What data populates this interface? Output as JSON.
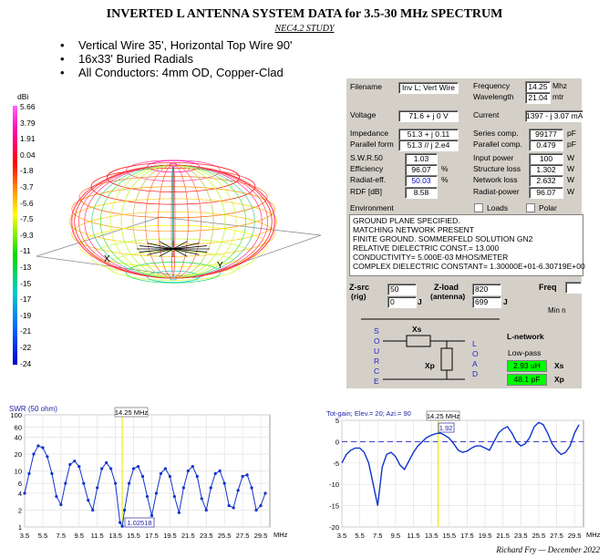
{
  "header": {
    "title": "INVERTED L ANTENNA SYSTEM DATA for 3.5-30 MHz SPECTRUM",
    "subtitle": "NEC4.2 STUDY",
    "bullets": [
      "Vertical Wire 35', Horizontal Top Wire 90'",
      "16x33' Buried Radials",
      "All Conductors: 4mm OD, Copper-Clad"
    ]
  },
  "pattern": {
    "scale_unit": "dBi",
    "scale_ticks": [
      "5.66",
      "3.79",
      "1.91",
      "0.04",
      "-1.8",
      "-3.7",
      "-5.6",
      "-7.5",
      "-9.3",
      "-11",
      "-13",
      "-15",
      "-17",
      "-19",
      "-21",
      "-22",
      "-24"
    ],
    "axis_x": "X",
    "axis_y": "Y"
  },
  "panel": {
    "filename_label": "Filename",
    "filename_value": "Inv L; Vert Wire",
    "frequency_label": "Frequency",
    "frequency_value": "14.25",
    "frequency_unit": "Mhz",
    "wavelength_label": "Wavelength",
    "wavelength_value": "21.04",
    "wavelength_unit": "mtr",
    "voltage_label": "Voltage",
    "voltage_value": "71.6 + j 0 V",
    "current_label": "Current",
    "current_value": "1397 - j 3.07 mA",
    "impedance_label": "Impedance",
    "impedance_value": "51.3 + j 0.11",
    "parallel_form_label": "Parallel form",
    "parallel_form_value": "51.3 // j 2.e4",
    "series_comp_label": "Series comp.",
    "series_comp_value": "99177",
    "series_comp_unit": "pF",
    "parallel_comp_label": "Parallel comp.",
    "parallel_comp_value": "0.479",
    "parallel_comp_unit": "pF",
    "swr_label": "S.W.R.50",
    "swr_value": "1.03",
    "input_power_label": "Input power",
    "input_power_value": "100",
    "input_power_unit": "W",
    "efficiency_label": "Efficiency",
    "efficiency_value": "96.07",
    "efficiency_unit": "%",
    "structure_loss_label": "Structure loss",
    "structure_loss_value": "1.302",
    "structure_loss_unit": "W",
    "radiat_eff_label": "Radiat-eff.",
    "radiat_eff_value": "50.03",
    "radiat_eff_unit": "%",
    "network_loss_label": "Network loss",
    "network_loss_value": "2.632",
    "network_loss_unit": "W",
    "rdf_label": "RDF [dB]",
    "rdf_value": "8.58",
    "radiat_power_label": "Radiat-power",
    "radiat_power_value": "96.07",
    "radiat_power_unit": "W",
    "environment_label": "Environment",
    "loads_label": "Loads",
    "polar_label": "Polar",
    "environment_lines": [
      "GROUND PLANE SPECIFIED.",
      "MATCHING NETWORK PRESENT",
      "FINITE GROUND.  SOMMERFELD SOLUTION GN2",
      "RELATIVE DIELECTRIC CONST.= 13.000",
      "CONDUCTIVITY= 5.000E-03 MHOS/METER",
      "COMPLEX DIELECTRIC CONSTANT= 1.30000E+01-6.30719E+00"
    ]
  },
  "network": {
    "zsrc_label": "Z-src",
    "zsrc_sub": "(rig)",
    "zsrc_r": "50",
    "zsrc_x": "0",
    "zload_label": "Z-load",
    "zload_sub": "(antenna)",
    "zload_r": "820",
    "zload_x": "699",
    "j_label": "J",
    "freq_label": "Freq",
    "min_label": "Min n",
    "source_label": "SOURCE",
    "load_label": "LOAD",
    "xs_label": "Xs",
    "xp_label": "Xp",
    "lnetwork_label": "L-network",
    "lowpass_label": "Low-pass",
    "xs_value": "2.93 uH",
    "xp_value": "48.1 pF",
    "xs_side": "Xs",
    "xp_side": "Xp"
  },
  "chart_data": [
    {
      "type": "line",
      "title": "SWR (50 ohm)",
      "marker_label": "14.25 MHz",
      "marker_value_label": "1.02518",
      "xunit": "MHz",
      "ylog": true,
      "ylim": [
        1,
        100
      ],
      "xlim": [
        3.5,
        30.5
      ],
      "xticks": [
        "3.5",
        "5.5",
        "7.5",
        "9.5",
        "11.5",
        "13.5",
        "15.5",
        "17.5",
        "19.5",
        "21.5",
        "23.5",
        "25.5",
        "27.5",
        "29.5"
      ],
      "yticks": [
        "100",
        "60",
        "40",
        "20",
        "10",
        "6",
        "4",
        "2",
        "1"
      ],
      "marker_x": 14.25,
      "x": [
        3.5,
        4.0,
        4.5,
        5.0,
        5.5,
        6.0,
        6.5,
        7.0,
        7.5,
        8.0,
        8.5,
        9.0,
        9.5,
        10.0,
        10.5,
        11.0,
        11.5,
        12.0,
        12.5,
        13.0,
        13.5,
        14.0,
        14.25,
        14.5,
        15.0,
        15.5,
        16.0,
        16.5,
        17.0,
        17.5,
        18.0,
        18.5,
        19.0,
        19.5,
        20.0,
        20.5,
        21.0,
        21.5,
        22.0,
        22.5,
        23.0,
        23.5,
        24.0,
        24.5,
        25.0,
        25.5,
        26.0,
        26.5,
        27.0,
        27.5,
        28.0,
        28.5,
        29.0,
        29.5,
        30.0
      ],
      "y": [
        4,
        9,
        20,
        28,
        26,
        18,
        9,
        3.5,
        2.5,
        6,
        13,
        15,
        12,
        6,
        3,
        2,
        5,
        11,
        14,
        11,
        6,
        1.2,
        1.03,
        2,
        6,
        11,
        12,
        8,
        3.5,
        1.6,
        4,
        9,
        11,
        8,
        3.5,
        1.8,
        5,
        10,
        12,
        8,
        3.2,
        2,
        5,
        9,
        10,
        6,
        2.4,
        2.2,
        4.5,
        8,
        8.5,
        5,
        2,
        2.4,
        4
      ]
    },
    {
      "type": "line",
      "title": "Tot-gain; Elev.= 20; Azi.= 90",
      "marker_label": "14.25 MHz",
      "marker_value_label": "1.92",
      "xunit": "MHz",
      "ylim": [
        -20,
        5
      ],
      "xlim": [
        3.5,
        30.5
      ],
      "xticks": [
        "3.5",
        "5.5",
        "7.5",
        "9.5",
        "11.5",
        "13.5",
        "15.5",
        "17.5",
        "19.5",
        "21.5",
        "23.5",
        "25.5",
        "27.5",
        "29.5"
      ],
      "yticks": [
        "5",
        "0",
        "-5",
        "-10",
        "-15",
        "-20"
      ],
      "marker_x": 14.25,
      "x": [
        3.5,
        4.0,
        4.5,
        5.0,
        5.5,
        6.0,
        6.5,
        7.0,
        7.5,
        8.0,
        8.5,
        9.0,
        9.5,
        10.0,
        10.5,
        11.0,
        11.5,
        12.0,
        12.5,
        13.0,
        13.5,
        14.0,
        14.5,
        15.0,
        15.5,
        16.0,
        16.5,
        17.0,
        17.5,
        18.0,
        18.5,
        19.0,
        19.5,
        20.0,
        20.5,
        21.0,
        21.5,
        22.0,
        22.5,
        23.0,
        23.5,
        24.0,
        24.5,
        25.0,
        25.5,
        26.0,
        26.5,
        27.0,
        27.5,
        28.0,
        28.5,
        29.0,
        29.5,
        30.0
      ],
      "y": [
        -5,
        -3,
        -2,
        -1.5,
        -1.5,
        -2.5,
        -5,
        -10,
        -15,
        -6,
        -3,
        -2.5,
        -3.5,
        -5.5,
        -6.5,
        -4.5,
        -2.5,
        -1,
        0,
        1,
        1.5,
        1.9,
        2,
        1.5,
        0.8,
        -0.5,
        -2,
        -2.5,
        -2.2,
        -1.5,
        -1,
        -1,
        -1.5,
        -2,
        0,
        2,
        3,
        3.5,
        2,
        0,
        -1,
        -0.5,
        1,
        3.5,
        4.5,
        4,
        2,
        -0.5,
        -2,
        -3,
        -2.5,
        -1,
        2,
        4
      ]
    }
  ],
  "footer": {
    "credit": "Richard Fry — December 2022"
  }
}
